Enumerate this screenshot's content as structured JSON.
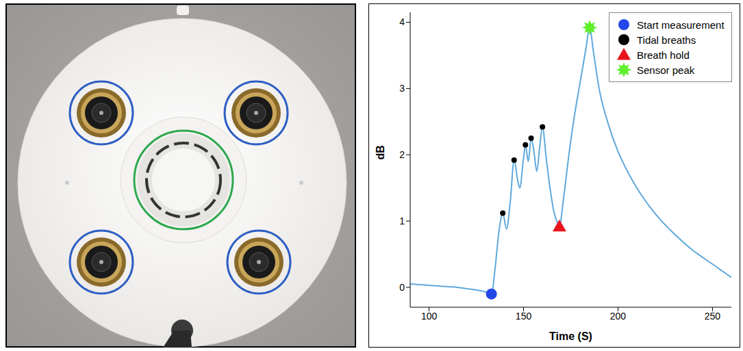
{
  "chart_data": {
    "type": "line",
    "x_label": "Time (S)",
    "y_label": "dB",
    "x": [
      90,
      95,
      100,
      105,
      110,
      115,
      120,
      125,
      130,
      133,
      135,
      137,
      139,
      141,
      143,
      145,
      147,
      148,
      150,
      151,
      152.5,
      154,
      155.5,
      157,
      158.5,
      160,
      162,
      164,
      166,
      168,
      169,
      171,
      174,
      177,
      180,
      183,
      185,
      187,
      190,
      195,
      200,
      205,
      210,
      220,
      230,
      240,
      250,
      260
    ],
    "values": [
      0.05,
      0.04,
      0.03,
      0.02,
      0.01,
      0,
      -0.02,
      -0.04,
      -0.07,
      -0.1,
      0.3,
      0.85,
      1.12,
      0.88,
      1.3,
      1.92,
      1.6,
      1.5,
      1.95,
      2.15,
      1.9,
      2.25,
      2.05,
      1.75,
      2.1,
      2.42,
      1.95,
      1.5,
      1.15,
      0.97,
      0.92,
      1.3,
      2.0,
      2.6,
      3.1,
      3.6,
      3.92,
      3.55,
      3.0,
      2.45,
      2.05,
      1.75,
      1.5,
      1.1,
      0.8,
      0.55,
      0.35,
      0.15
    ],
    "color": "#5fa8dc",
    "line_style": "solid",
    "xlim": [
      90,
      260
    ],
    "ylim": [
      -0.3,
      4.15
    ],
    "xticks": [
      100,
      150,
      200,
      250
    ],
    "yticks": [
      0,
      1,
      2,
      3,
      4
    ],
    "grid": false,
    "legend": "upper right",
    "markers": [
      {
        "label": "Start measurement",
        "color": "#2347e8",
        "marker": "circle",
        "points": [
          [
            133,
            -0.1
          ]
        ]
      },
      {
        "label": "Tidal breaths",
        "color": "#000000",
        "marker": "dot",
        "points": [
          [
            139,
            1.12
          ],
          [
            145,
            1.92
          ],
          [
            151,
            2.15
          ],
          [
            154,
            2.25
          ],
          [
            160,
            2.42
          ]
        ]
      },
      {
        "label": "Breath hold",
        "color": "#e8141b",
        "marker": "triangle",
        "points": [
          [
            169,
            0.92
          ]
        ]
      },
      {
        "label": "Sensor peak",
        "color": "#5ef02a",
        "marker": "star",
        "points": [
          [
            185,
            3.92
          ]
        ]
      }
    ]
  }
}
